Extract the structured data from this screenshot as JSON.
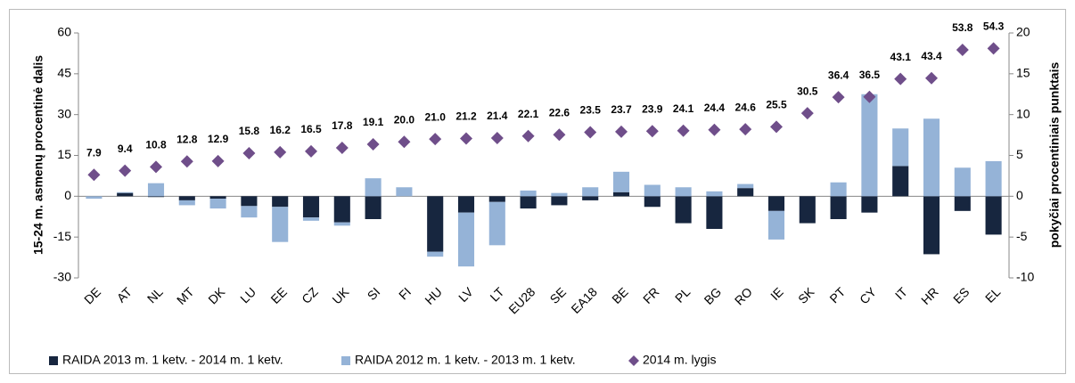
{
  "chart_data": {
    "type": "bar",
    "stacked": true,
    "y_label": "15-24 m. asmenų procentinė dalis",
    "y2_label": "pokyčiai procentiniais punktais",
    "categories": [
      "DE",
      "AT",
      "NL",
      "MT",
      "DK",
      "LU",
      "EE",
      "CZ",
      "UK",
      "SI",
      "FI",
      "HU",
      "LV",
      "LT",
      "EU28",
      "SE",
      "EA18",
      "BE",
      "FR",
      "PL",
      "BG",
      "RO",
      "IE",
      "SK",
      "PT",
      "CY",
      "IT",
      "HR",
      "ES",
      "EL"
    ],
    "series": [
      {
        "name": "RAIDA 2013 m. 1 ketv. - 2014 m. 1 ketv.",
        "type": "bar",
        "axis": "y2",
        "color": "#17263f",
        "values": [
          0,
          0.4,
          -0.1,
          -0.5,
          -0.3,
          -1.2,
          -1.3,
          -2.6,
          -3.2,
          -2.8,
          0,
          -6.8,
          -2.0,
          -0.7,
          -1.5,
          -1.1,
          -0.5,
          0.5,
          -1.3,
          -3.3,
          -4.0,
          1.0,
          -1.8,
          -3.3,
          -2.8,
          -2.0,
          3.7,
          -7.1,
          -1.8,
          -4.7
        ]
      },
      {
        "name": "RAIDA 2012 m. 1 ketv. - 2013 m. 1 ketv.",
        "type": "bar",
        "axis": "y2",
        "color": "#95b3d7",
        "values": [
          -0.3,
          0.1,
          1.6,
          -0.6,
          -1.2,
          -1.4,
          -4.3,
          -0.4,
          -0.4,
          2.2,
          1.1,
          -0.6,
          -6.6,
          -5.3,
          0.7,
          0.4,
          1.1,
          2.5,
          1.4,
          1.1,
          0.6,
          0.5,
          -3.5,
          0,
          1.7,
          12.5,
          4.6,
          9.5,
          3.5,
          4.3
        ]
      },
      {
        "name": "2014 m. lygis",
        "type": "scatter",
        "axis": "y",
        "color": "#6f4e8a",
        "values": [
          7.9,
          9.4,
          10.8,
          12.8,
          12.9,
          15.8,
          16.2,
          16.5,
          17.8,
          19.1,
          20.0,
          21.0,
          21.2,
          21.4,
          22.1,
          22.6,
          23.5,
          23.7,
          23.9,
          24.1,
          24.4,
          24.6,
          25.5,
          30.5,
          36.4,
          36.5,
          43.1,
          43.4,
          53.8,
          54.3
        ],
        "value_labels": [
          "7.9",
          "9.4",
          "10.8",
          "12.8",
          "12.9",
          "15.8",
          "16.2",
          "16.5",
          "17.8",
          "19.1",
          "20.0",
          "21.0",
          "21.2",
          "21.4",
          "22.1",
          "22.6",
          "23.5",
          "23.7",
          "23.9",
          "24.1",
          "24.4",
          "24.6",
          "25.5",
          "30.5",
          "36.4",
          "36.5",
          "43.1",
          "43.4",
          "53.8",
          "54.3"
        ]
      }
    ],
    "ylim": [
      -30,
      60
    ],
    "yticks": [
      -30,
      -15,
      0,
      15,
      30,
      45,
      60
    ],
    "y2lim": [
      -10,
      20
    ],
    "y2ticks": [
      -10,
      -5,
      0,
      5,
      10,
      15,
      20
    ]
  }
}
